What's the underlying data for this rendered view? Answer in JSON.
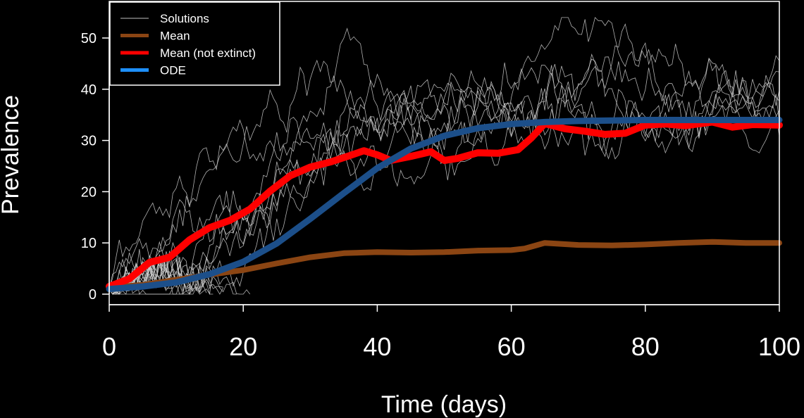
{
  "chart_data": {
    "type": "line",
    "xlabel": "Time (days)",
    "ylabel": "Prevalence",
    "xlim": [
      0,
      100
    ],
    "ylim": [
      0,
      55
    ],
    "x_ticks": [
      0,
      20,
      40,
      60,
      80,
      100
    ],
    "y_ticks": [
      0,
      10,
      20,
      30,
      40,
      50
    ],
    "grid": false,
    "legend_position": "top-left",
    "legend": [
      {
        "label": "Solutions",
        "color": "#bfbfbf"
      },
      {
        "label": "Mean",
        "color": "#8B4513"
      },
      {
        "label": "Mean (not extinct)",
        "color": "#ff0000"
      },
      {
        "label": "ODE",
        "color": "#1e90ff"
      }
    ],
    "series": [
      {
        "name": "ODE",
        "color": "#1c4f8a",
        "x": [
          0,
          5,
          10,
          15,
          20,
          25,
          30,
          35,
          40,
          45,
          50,
          55,
          60,
          65,
          70,
          75,
          80,
          85,
          90,
          95,
          100
        ],
        "y": [
          1,
          1.5,
          2.3,
          3.9,
          6.3,
          9.9,
          14.7,
          19.7,
          24.6,
          28.4,
          30.9,
          32.4,
          33.2,
          33.6,
          33.8,
          33.9,
          34,
          34,
          34,
          34,
          34
        ]
      },
      {
        "name": "Mean (not extinct)",
        "color": "#ff0000",
        "x": [
          0,
          3,
          6,
          9,
          12,
          15,
          18,
          21,
          24,
          27,
          30,
          33,
          36,
          38,
          40,
          42,
          45,
          48,
          50,
          52,
          55,
          58,
          61,
          63,
          65,
          68,
          71,
          74,
          77,
          80,
          83,
          86,
          90,
          93,
          96,
          100
        ],
        "y": [
          1.5,
          3,
          6.2,
          7.2,
          10.6,
          13,
          14.4,
          16.6,
          20.1,
          23.1,
          24.8,
          25.8,
          27.1,
          28,
          27.2,
          26.1,
          26.9,
          27.8,
          26.1,
          26.5,
          27.6,
          27.5,
          28.2,
          30.5,
          33.3,
          32.3,
          31.8,
          31.2,
          31.4,
          33,
          33.2,
          32.9,
          33.6,
          32.6,
          33.1,
          33
        ]
      },
      {
        "name": "Mean",
        "color": "#8B4513",
        "x": [
          0,
          5,
          10,
          15,
          20,
          25,
          30,
          35,
          40,
          45,
          50,
          55,
          60,
          62,
          65,
          70,
          75,
          80,
          85,
          90,
          95,
          100
        ],
        "y": [
          1.3,
          1.8,
          2.8,
          3.8,
          4.7,
          6,
          7.2,
          8,
          8.2,
          8.1,
          8.2,
          8.5,
          8.6,
          8.9,
          10,
          9.6,
          9.5,
          9.7,
          10,
          10.2,
          10,
          10
        ]
      }
    ],
    "solutions_count": 20
  }
}
